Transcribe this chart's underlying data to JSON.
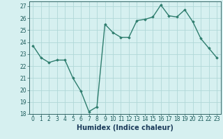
{
  "x": [
    0,
    1,
    2,
    3,
    4,
    5,
    6,
    7,
    8,
    9,
    10,
    11,
    12,
    13,
    14,
    15,
    16,
    17,
    18,
    19,
    20,
    21,
    22,
    23
  ],
  "y": [
    23.7,
    22.7,
    22.3,
    22.5,
    22.5,
    21.0,
    19.9,
    18.2,
    18.6,
    25.5,
    24.8,
    24.4,
    24.4,
    25.8,
    25.9,
    26.1,
    27.1,
    26.2,
    26.1,
    26.7,
    25.7,
    24.3,
    23.5,
    22.7
  ],
  "line_color": "#2e7d6e",
  "marker": "D",
  "marker_size": 1.8,
  "bg_color": "#d6f0f0",
  "grid_color": "#b0d8d8",
  "xlabel": "Humidex (Indice chaleur)",
  "ylim": [
    18,
    27.4
  ],
  "yticks": [
    18,
    19,
    20,
    21,
    22,
    23,
    24,
    25,
    26,
    27
  ],
  "xticks": [
    0,
    1,
    2,
    3,
    4,
    5,
    6,
    7,
    8,
    9,
    10,
    11,
    12,
    13,
    14,
    15,
    16,
    17,
    18,
    19,
    20,
    21,
    22,
    23
  ],
  "tick_fontsize": 5.5,
  "xlabel_fontsize": 7.0,
  "line_width": 1.0
}
